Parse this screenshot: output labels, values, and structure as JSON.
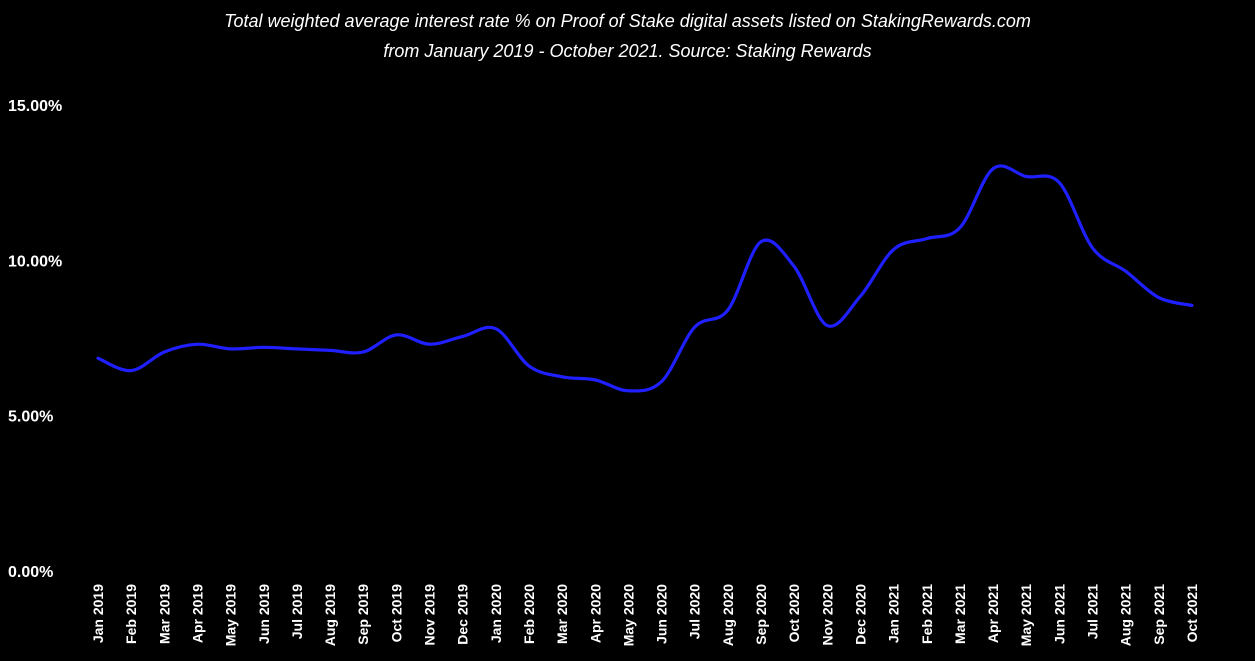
{
  "chart_data": {
    "type": "line",
    "title": "Total weighted average interest rate % on Proof of Stake digital assets listed on StakingRewards.com",
    "subtitle": "from January 2019 - October 2021. Source: Staking Rewards",
    "xlabel": "",
    "ylabel": "",
    "ylim": [
      0,
      15
    ],
    "y_ticks": [
      {
        "value": 0,
        "label": "0.00%"
      },
      {
        "value": 5,
        "label": "5.00%"
      },
      {
        "value": 10,
        "label": "10.00%"
      },
      {
        "value": 15,
        "label": "15.00%"
      }
    ],
    "grid": false,
    "legend": "none",
    "categories": [
      "Jan 2019",
      "Feb 2019",
      "Mar 2019",
      "Apr 2019",
      "May 2019",
      "Jun 2019",
      "Jul 2019",
      "Aug 2019",
      "Sep 2019",
      "Oct 2019",
      "Nov 2019",
      "Dec 2019",
      "Jan 2020",
      "Feb 2020",
      "Mar 2020",
      "Apr 2020",
      "May 2020",
      "Jun 2020",
      "Jul 2020",
      "Aug 2020",
      "Sep 2020",
      "Oct 2020",
      "Nov 2020",
      "Dec 2020",
      "Jan 2021",
      "Feb 2021",
      "Mar 2021",
      "Apr 2021",
      "May 2021",
      "Jun 2021",
      "Jul 2021",
      "Aug 2021",
      "Sep 2021",
      "Oct 2021"
    ],
    "series": [
      {
        "name": "Weighted average interest rate",
        "color": "#1f1fff",
        "values": [
          6.85,
          6.45,
          7.05,
          7.3,
          7.15,
          7.2,
          7.15,
          7.1,
          7.05,
          7.6,
          7.3,
          7.55,
          7.8,
          6.6,
          6.25,
          6.15,
          5.8,
          6.1,
          7.85,
          8.4,
          10.6,
          9.8,
          7.9,
          8.85,
          10.35,
          10.7,
          11.05,
          12.95,
          12.7,
          12.5,
          10.4,
          9.65,
          8.8,
          8.55
        ]
      }
    ]
  }
}
